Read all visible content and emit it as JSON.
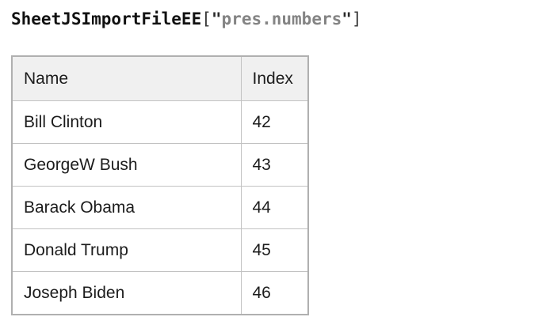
{
  "code": {
    "object": "SheetJSImportFileEE",
    "bracket_open": "[",
    "quote": "\"",
    "key": "pres.numbers",
    "bracket_close": "]"
  },
  "table": {
    "headers": [
      "Name",
      "Index"
    ],
    "rows": [
      {
        "name": "Bill Clinton",
        "index": "42"
      },
      {
        "name": "GeorgeW Bush",
        "index": "43"
      },
      {
        "name": "Barack Obama",
        "index": "44"
      },
      {
        "name": "Donald Trump",
        "index": "45"
      },
      {
        "name": "Joseph Biden",
        "index": "46"
      }
    ]
  },
  "colors": {
    "header_bg": "#f0f0f0",
    "border_inner": "#c2c2c2",
    "border_outer": "#b0b0b0",
    "text_color": "#1c1c1c",
    "string_gray": "#848484"
  }
}
